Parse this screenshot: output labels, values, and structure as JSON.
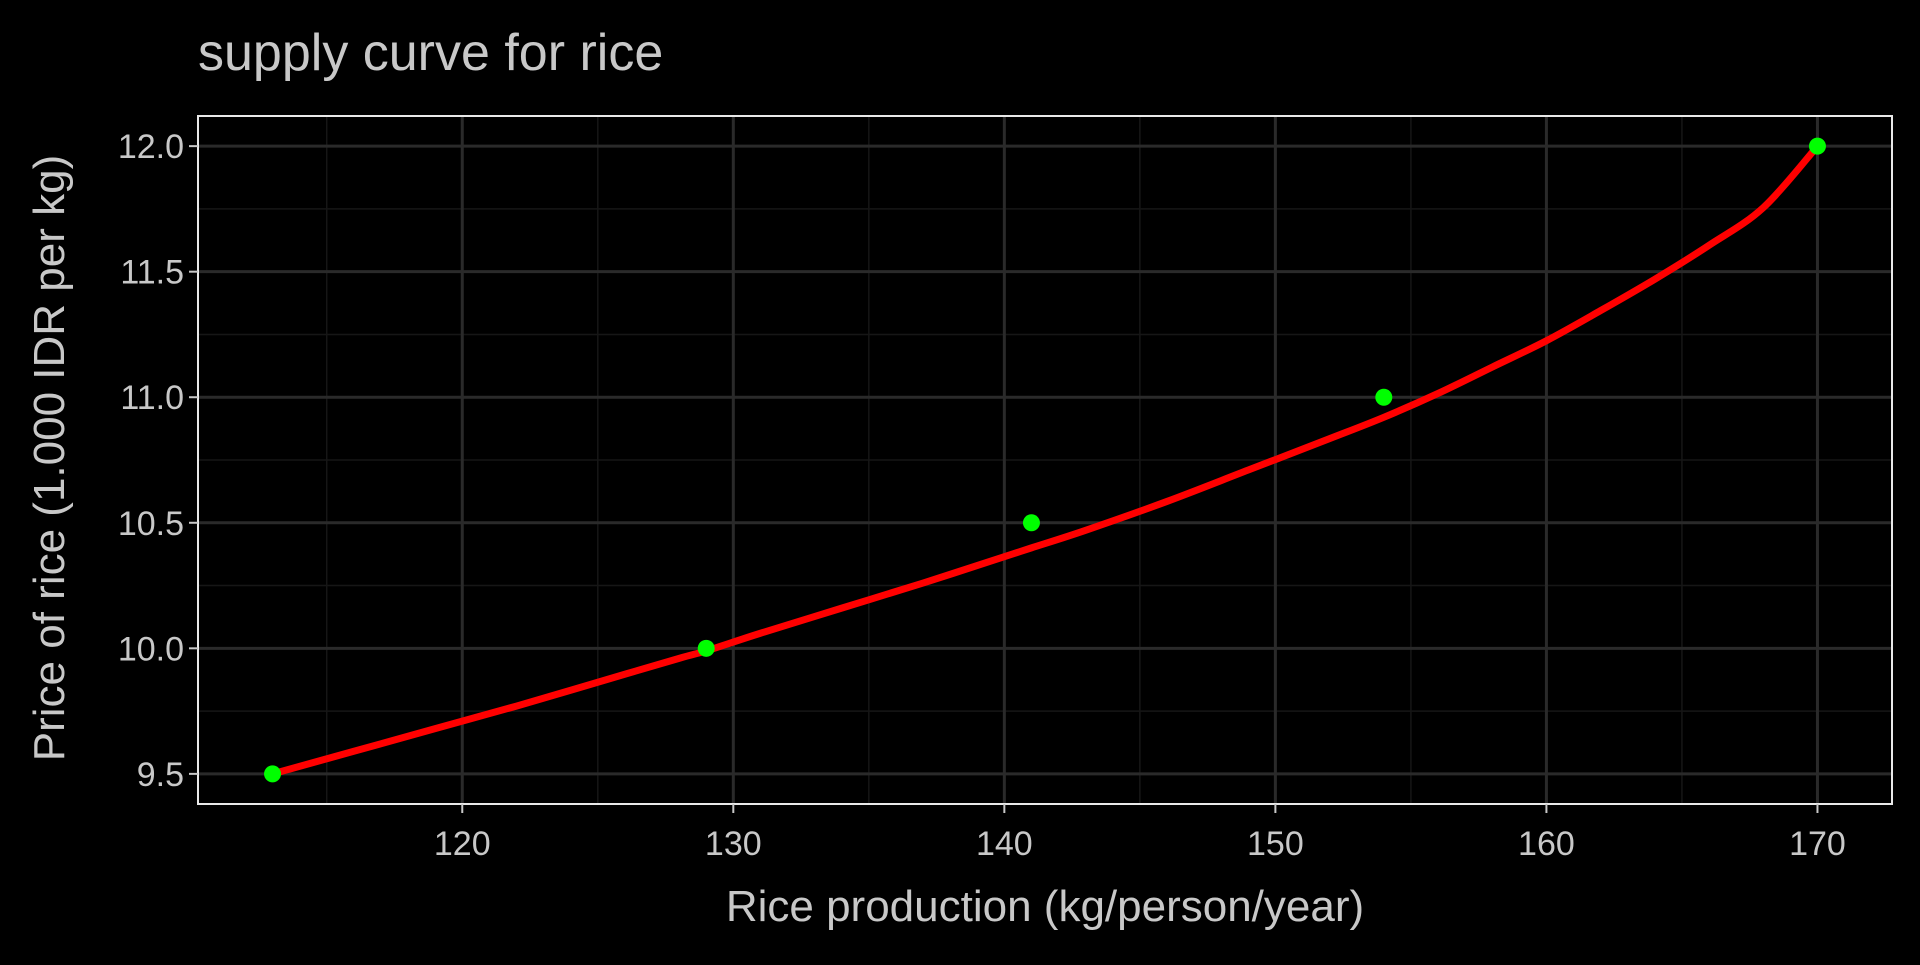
{
  "chart_data": {
    "type": "line",
    "title": "supply curve for rice",
    "xlabel": "Rice production (kg/person/year)",
    "ylabel": "Price of rice (1.000 IDR per kg)",
    "xlim": [
      110.25,
      172.75
    ],
    "ylim": [
      9.38,
      12.12
    ],
    "x_ticks": [
      120,
      130,
      140,
      150,
      160,
      170
    ],
    "y_ticks": [
      9.5,
      10.0,
      10.5,
      11.0,
      11.5,
      12.0
    ],
    "x_tick_labels": [
      "120",
      "130",
      "140",
      "150",
      "160",
      "170"
    ],
    "y_tick_labels": [
      "9.5",
      "10.0",
      "10.5",
      "11.0",
      "11.5",
      "12.0"
    ],
    "x_minor_ticks": [
      115,
      125,
      135,
      145,
      155,
      165
    ],
    "y_minor_ticks": [
      9.75,
      10.25,
      10.75,
      11.25,
      11.75
    ],
    "grid": true,
    "series": [
      {
        "kind": "curve",
        "color": "#ff0000",
        "x": [
          113,
          116,
          119,
          122,
          125,
          128,
          129,
          131,
          134,
          137,
          140,
          141,
          143,
          146,
          149,
          152,
          154,
          156,
          158,
          160,
          162,
          164,
          166,
          168,
          170
        ],
        "y": [
          9.5,
          9.59,
          9.68,
          9.77,
          9.865,
          9.96,
          9.99,
          10.06,
          10.16,
          10.26,
          10.365,
          10.4,
          10.47,
          10.585,
          10.71,
          10.835,
          10.92,
          11.015,
          11.12,
          11.225,
          11.345,
          11.47,
          11.605,
          11.755,
          12.0
        ]
      },
      {
        "kind": "points",
        "color": "#00ff00",
        "x": [
          113,
          129,
          141,
          154,
          170
        ],
        "y": [
          9.5,
          10.0,
          10.5,
          11.0,
          12.0
        ]
      }
    ]
  },
  "colors": {
    "background": "#000000",
    "panel": "#000000",
    "panel_border": "#e8e8e8",
    "grid_major": "#2a2a2a",
    "grid_minor": "#161616",
    "text": "#c8c8c8",
    "curve": "#ff0000",
    "points": "#00ff00"
  }
}
